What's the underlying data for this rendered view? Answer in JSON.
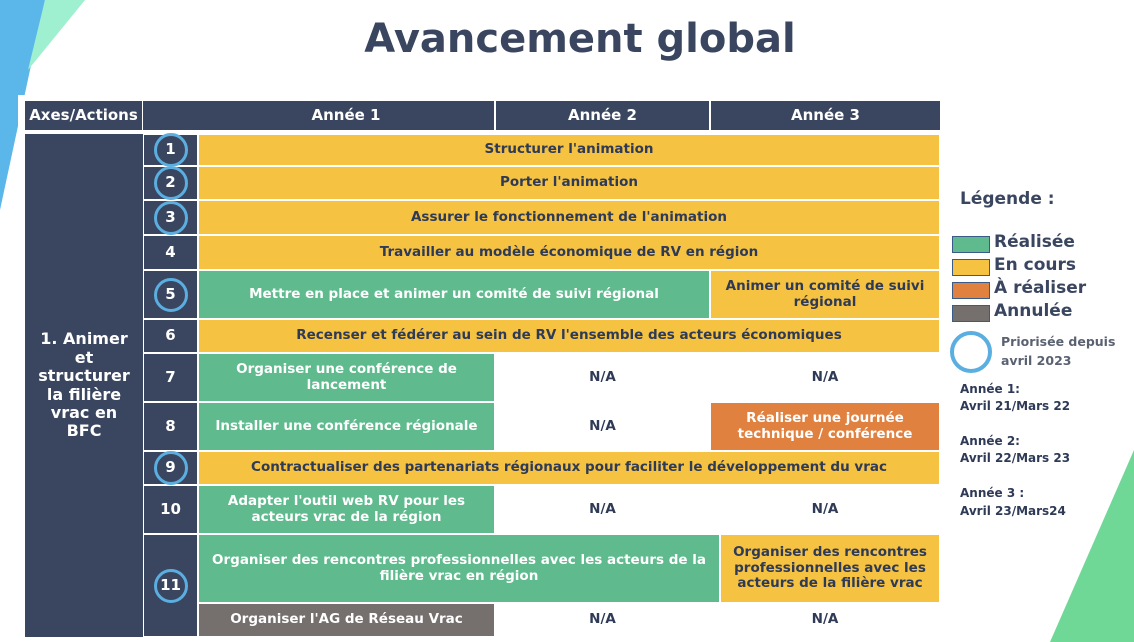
{
  "title": "Avancement global",
  "header": {
    "axes": "Axes/Actions",
    "y1": "Année 1",
    "y2": "Année 2",
    "y3": "Année 3"
  },
  "axis": "1. Animer et structurer la filière vrac en BFC",
  "rows": [
    {
      "num": "1",
      "prio": true,
      "cells": [
        "Structurer l'animation"
      ]
    },
    {
      "num": "2",
      "prio": true,
      "cells": [
        "Porter l'animation"
      ]
    },
    {
      "num": "3",
      "prio": true,
      "cells": [
        "Assurer le fonctionnement de l'animation"
      ]
    },
    {
      "num": "4",
      "prio": false,
      "cells": [
        "Travailler au modèle économique de RV en région"
      ]
    },
    {
      "num": "5",
      "prio": true,
      "cells": [
        "Mettre en place et animer un comité de suivi régional",
        "Animer un comité de suivi régional"
      ]
    },
    {
      "num": "6",
      "prio": false,
      "cells": [
        "Recenser et fédérer au sein de RV l'ensemble des acteurs économiques"
      ]
    },
    {
      "num": "7",
      "prio": false,
      "cells": [
        "Organiser une conférence de lancement",
        "N/A",
        "N/A"
      ]
    },
    {
      "num": "8",
      "prio": false,
      "cells": [
        "Installer une conférence régionale",
        "N/A",
        "Réaliser une journée technique / conférence"
      ]
    },
    {
      "num": "9",
      "prio": true,
      "cells": [
        "Contractualiser des partenariats régionaux pour faciliter le développement du vrac"
      ]
    },
    {
      "num": "10",
      "prio": false,
      "cells": [
        "Adapter l'outil web RV pour les acteurs vrac de la région",
        "N/A",
        "N/A"
      ]
    },
    {
      "num": "11",
      "prio": true,
      "cells": [
        "Organiser des rencontres professionnelles avec les acteurs de la filière vrac en région",
        "Organiser des rencontres professionnelles avec les acteurs de la filière vrac"
      ]
    },
    {
      "num": "",
      "prio": false,
      "cells": [
        "Organiser l'AG de Réseau Vrac",
        "N/A",
        "N/A"
      ]
    }
  ],
  "legend": {
    "title": "Légende :",
    "items": [
      {
        "label": "Réalisée",
        "color": "#5fbb8d"
      },
      {
        "label": "En cours",
        "color": "#f5c242"
      },
      {
        "label": "À réaliser",
        "color": "#e08140"
      },
      {
        "label": "Annulée",
        "color": "#756f6e"
      }
    ],
    "priority": "Priorisée depuis avril 2023",
    "years": [
      "Année 1:",
      "Avril 21/Mars 22",
      "Année 2:",
      "Avril 22/Mars 23",
      "Année 3 :",
      "Avril 23/Mars24"
    ]
  }
}
